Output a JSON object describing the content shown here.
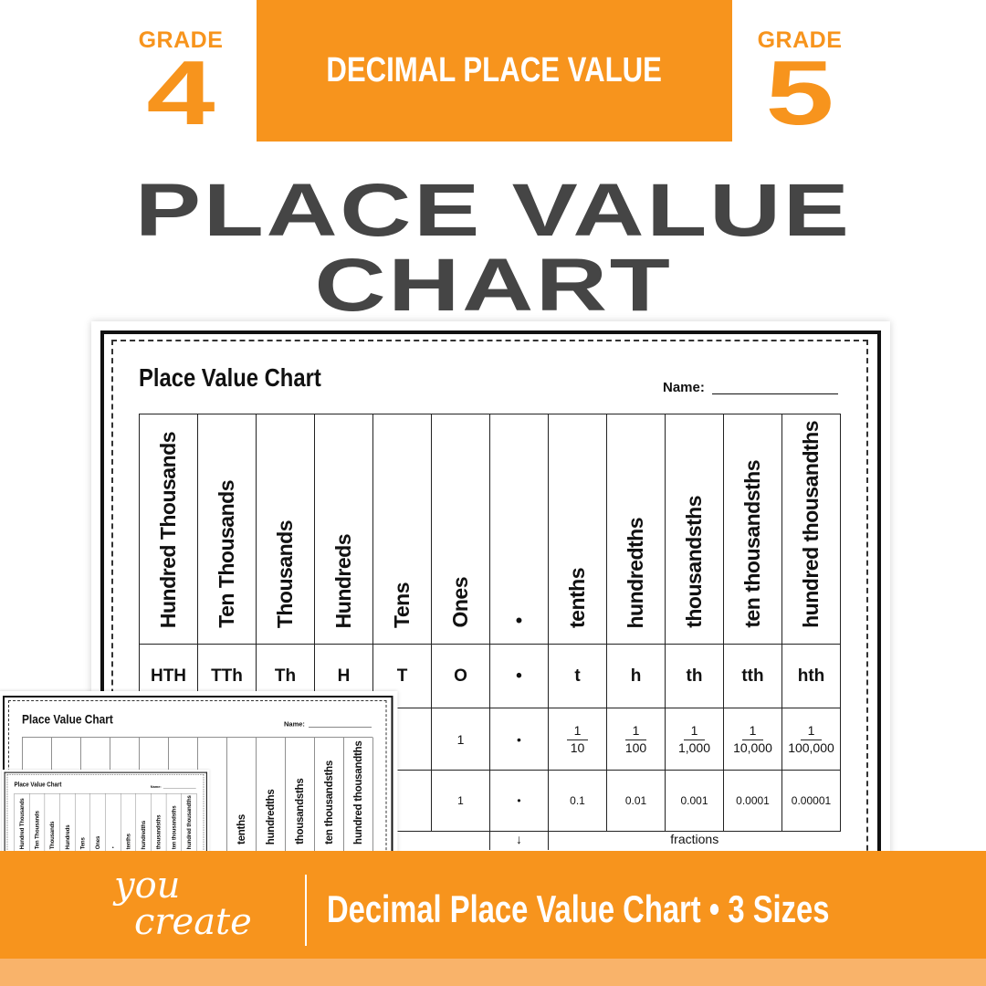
{
  "header": {
    "left_grade": {
      "label": "GRADE",
      "number": "4"
    },
    "right_grade": {
      "label": "GRADE",
      "number": "5"
    },
    "banner_text": "DECIMAL PLACE VALUE",
    "title_line1": "PLACE VALUE",
    "title_line2": "CHART"
  },
  "sheet": {
    "title": "Place Value Chart",
    "name_label": "Name:",
    "columns": [
      {
        "header": "Hundred Thousands",
        "abbr": "HTH",
        "fraction": null,
        "decimal": ""
      },
      {
        "header": "Ten Thousands",
        "abbr": "TTh",
        "fraction": null,
        "decimal": ""
      },
      {
        "header": "Thousands",
        "abbr": "Th",
        "fraction": null,
        "decimal": ""
      },
      {
        "header": "Hundreds",
        "abbr": "H",
        "fraction": null,
        "decimal": ""
      },
      {
        "header": "Tens",
        "abbr": "T",
        "fraction": null,
        "decimal": ""
      },
      {
        "header": "Ones",
        "abbr": "O",
        "fraction": "1",
        "decimal": "1"
      },
      {
        "header": "•",
        "abbr": "•",
        "fraction": "•",
        "decimal": "•"
      },
      {
        "header": "tenths",
        "abbr": "t",
        "fraction": {
          "num": "1",
          "den": "10"
        },
        "decimal": "0.1"
      },
      {
        "header": "hundredths",
        "abbr": "h",
        "fraction": {
          "num": "1",
          "den": "100"
        },
        "decimal": "0.01"
      },
      {
        "header": "thousandsths",
        "abbr": "th",
        "fraction": {
          "num": "1",
          "den": "1,000"
        },
        "decimal": "0.001"
      },
      {
        "header": "ten thousandsths",
        "abbr": "tth",
        "fraction": {
          "num": "1",
          "den": "10,000"
        },
        "decimal": "0.0001"
      },
      {
        "header": "hundred thousandths",
        "abbr": "hth",
        "fraction": {
          "num": "1",
          "den": "100,000"
        },
        "decimal": "0.00001"
      }
    ],
    "footer_label": "fractions",
    "arrow": "↓"
  },
  "footer": {
    "logo_line1": "you",
    "logo_line2": "create",
    "text": "Decimal Place Value Chart • 3 Sizes"
  },
  "colors": {
    "brand_orange": "#F7941D",
    "light_orange": "#F9B36A",
    "title_gray": "#454545"
  }
}
